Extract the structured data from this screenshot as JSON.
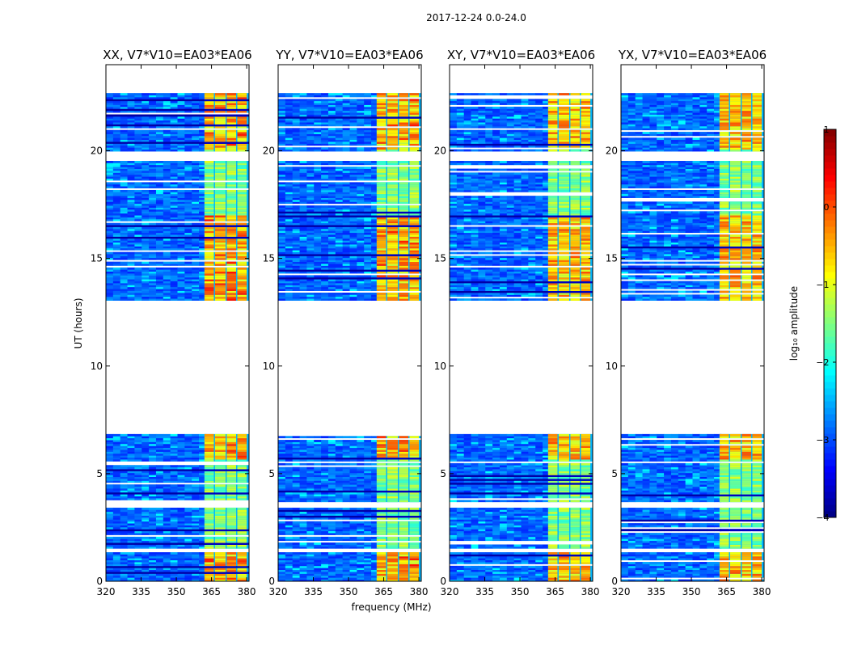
{
  "chart_data": {
    "type": "heatmap",
    "suptitle": "2017-12-24 0.0-24.0",
    "xlabel": "frequency (MHz)",
    "ylabel": "UT (hours)",
    "xlim": [
      320,
      381
    ],
    "ylim": [
      0,
      24
    ],
    "xticks": [
      320,
      335,
      350,
      365,
      380
    ],
    "yticks": [
      0,
      5,
      10,
      15,
      20
    ],
    "panels": [
      {
        "title": "XX, V7*V10=EA03*EA06"
      },
      {
        "title": "YY, V7*V10=EA03*EA06"
      },
      {
        "title": "XY, V7*V10=EA03*EA06"
      },
      {
        "title": "YX, V7*V10=EA03*EA06"
      }
    ],
    "data_time_ranges_hours": [
      [
        0.0,
        6.8
      ],
      [
        13.0,
        22.6
      ]
    ],
    "flagged_time_gaps_hours": [
      [
        1.3,
        1.5
      ],
      [
        3.4,
        3.6
      ],
      [
        5.4,
        5.55
      ],
      [
        19.5,
        19.9
      ]
    ],
    "bright_band_mhz": [
      362,
      381
    ],
    "bright_channel_blocks_mhz": [
      [
        362,
        366
      ],
      [
        366.5,
        371
      ],
      [
        371.5,
        375.5
      ],
      [
        376,
        380
      ]
    ],
    "colorbar": {
      "label": "log₁₀ amplitude",
      "range": [
        -4,
        1
      ],
      "ticks": [
        1,
        0,
        -1,
        -2,
        -3,
        -4
      ],
      "tick_labels": [
        "1",
        "0",
        "−1",
        "−2",
        "−3",
        "−4"
      ],
      "colormap": "jet"
    }
  }
}
